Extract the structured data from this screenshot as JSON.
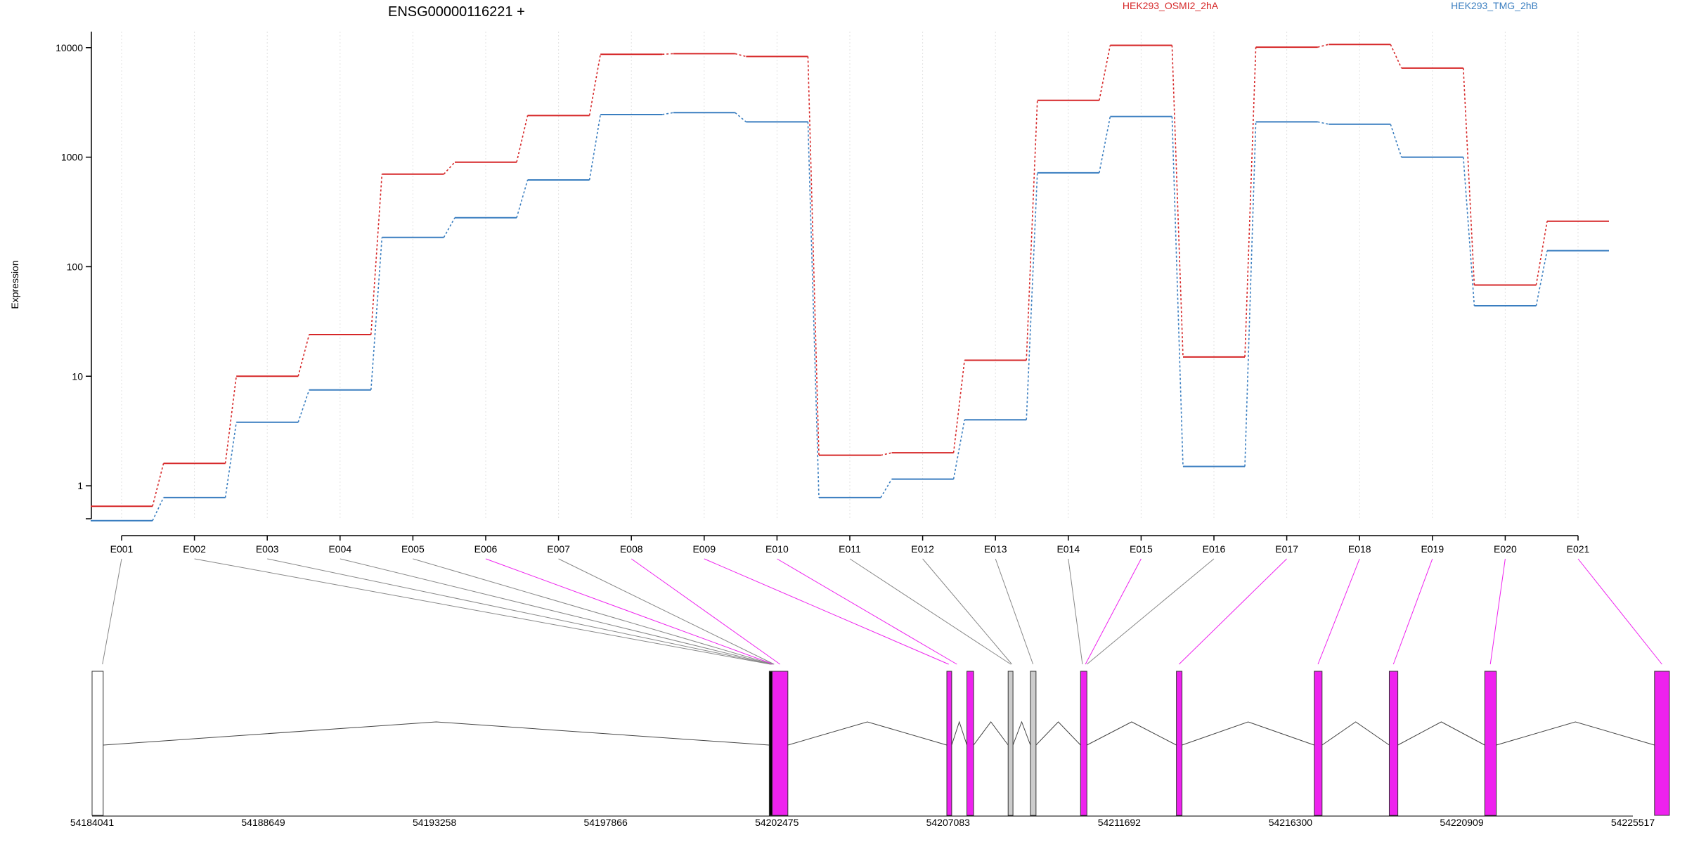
{
  "chart_data": {
    "type": "line",
    "title": "ENSG00000116221 +",
    "ylabel": "Expression",
    "yscale": "log",
    "ylim": [
      0.5,
      14000
    ],
    "y_ticks": [
      {
        "value": 1,
        "label": "1"
      },
      {
        "value": 10,
        "label": "10"
      },
      {
        "value": 100,
        "label": "100"
      },
      {
        "value": 1000,
        "label": "1000"
      },
      {
        "value": 10000,
        "label": "10000"
      }
    ],
    "grid": true,
    "legend_position": "top",
    "categories": [
      "E001",
      "E002",
      "E003",
      "E004",
      "E005",
      "E006",
      "E007",
      "E008",
      "E009",
      "E010",
      "E011",
      "E012",
      "E013",
      "E014",
      "E015",
      "E016",
      "E017",
      "E018",
      "E019",
      "E020",
      "E021"
    ],
    "series": [
      {
        "name": "HEK293_OSMI2_2hA",
        "color": "#d62728",
        "values": [
          0.65,
          1.6,
          10,
          24,
          700,
          900,
          2400,
          8700,
          8800,
          8300,
          1.9,
          2.0,
          14,
          3300,
          10500,
          15,
          10100,
          10700,
          6500,
          68,
          260
        ]
      },
      {
        "name": "HEK293_TMG_2hB",
        "color": "#3a7ec0",
        "values": [
          0.48,
          0.78,
          3.8,
          7.5,
          185,
          280,
          620,
          2450,
          2550,
          2100,
          0.78,
          1.15,
          4.0,
          720,
          2350,
          1.5,
          2100,
          2000,
          1000,
          44,
          140
        ]
      }
    ],
    "gene_model": {
      "coordinate_labels": [
        "54184041",
        "54188649",
        "54193258",
        "54197866",
        "54202475",
        "54207083",
        "54211692",
        "54216300",
        "54220909",
        "54225517"
      ],
      "coordinate_range": [
        54184041,
        54225517
      ],
      "exon_color_significant": "#ee22ee",
      "exon_color_other": "#cccccc",
      "significant_exons": [
        "E006",
        "E008",
        "E009",
        "E010",
        "E015",
        "E017",
        "E018",
        "E019",
        "E020",
        "E021"
      ]
    }
  }
}
